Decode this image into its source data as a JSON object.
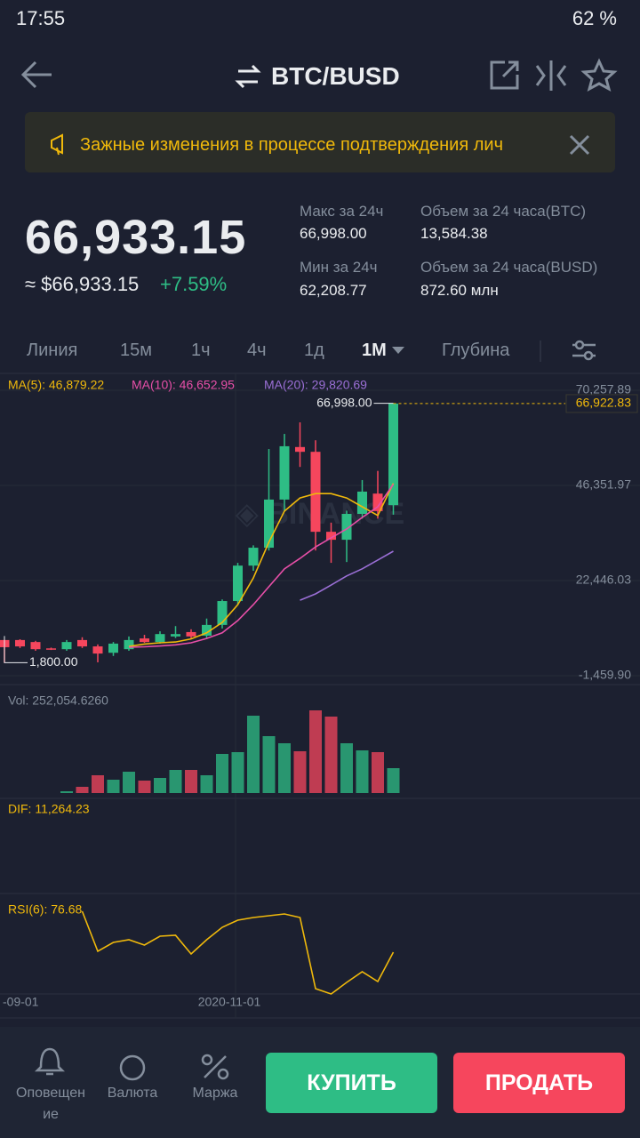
{
  "status_bar": {
    "time": "17:55",
    "battery": "62 %"
  },
  "header": {
    "title": "BTC/BUSD"
  },
  "banner": {
    "text": "Зажные изменения в процессе подтверждения лич"
  },
  "price": {
    "last": "66,933.15",
    "usd": "≈ $66,933.15",
    "change": "+7.59%"
  },
  "stats": [
    {
      "label": "Макс за 24ч",
      "value": "66,998.00"
    },
    {
      "label": "Объем за 24 часа(BTC)",
      "value": "13,584.38"
    },
    {
      "label": "Мин за 24ч",
      "value": "62,208.77"
    },
    {
      "label": "Объем за 24 часа(BUSD)",
      "value": "872.60 млн"
    }
  ],
  "tabs": [
    "Линия",
    "15м",
    "1ч",
    "4ч",
    "1д",
    "1М",
    "Глубина"
  ],
  "chart_data": {
    "type": "candlestick",
    "ylim": [
      -1459.9,
      70257.89
    ],
    "yticks": [
      {
        "value": 70257.89,
        "label": "70,257.89"
      },
      {
        "value": 46351.97,
        "label": "46,351.97"
      },
      {
        "value": 22446.03,
        "label": "22,446.03"
      },
      {
        "value": -1459.9,
        "label": "-1,459.90"
      }
    ],
    "up_color": "#2ebd85",
    "down_color": "#f6465d",
    "last_price": {
      "value": 66922.83,
      "label": "66,922.83"
    },
    "max_label": {
      "value": 66998,
      "label": "66,998.00"
    },
    "min_label": {
      "value": 1800,
      "label": "1,800.00"
    },
    "x_labels": [
      {
        "index": 0,
        "label": "-09-01"
      },
      {
        "index": 14,
        "label": "2020-11-01"
      }
    ],
    "candles": [
      {
        "open": 7500,
        "high": 7500,
        "low": 1800,
        "close": 5700
      },
      {
        "open": 7500,
        "high": 7700,
        "low": 5500,
        "close": 5900
      },
      {
        "open": 7000,
        "high": 7300,
        "low": 4800,
        "close": 5200
      },
      {
        "open": 5400,
        "high": 5600,
        "low": 5000,
        "close": 5200
      },
      {
        "open": 5200,
        "high": 7500,
        "low": 4800,
        "close": 7000
      },
      {
        "open": 7500,
        "high": 8200,
        "low": 5500,
        "close": 5900
      },
      {
        "open": 5900,
        "high": 6400,
        "low": 1900,
        "close": 4100
      },
      {
        "open": 4300,
        "high": 7000,
        "low": 3500,
        "close": 6600
      },
      {
        "open": 5200,
        "high": 8400,
        "low": 4800,
        "close": 7500
      },
      {
        "open": 7900,
        "high": 8800,
        "low": 6800,
        "close": 7000
      },
      {
        "open": 7000,
        "high": 9700,
        "low": 6600,
        "close": 9000
      },
      {
        "open": 8400,
        "high": 11000,
        "low": 8000,
        "close": 9000
      },
      {
        "open": 9500,
        "high": 10200,
        "low": 7900,
        "close": 8400
      },
      {
        "open": 8600,
        "high": 12900,
        "low": 8000,
        "close": 11300
      },
      {
        "open": 11300,
        "high": 17700,
        "low": 10400,
        "close": 17300
      },
      {
        "open": 17300,
        "high": 26900,
        "low": 16400,
        "close": 26200
      },
      {
        "open": 26200,
        "high": 31300,
        "low": 24900,
        "close": 30700
      },
      {
        "open": 30700,
        "high": 55500,
        "low": 30000,
        "close": 42800
      },
      {
        "open": 42800,
        "high": 59300,
        "low": 40000,
        "close": 56200
      },
      {
        "open": 56000,
        "high": 62200,
        "low": 51000,
        "close": 54800
      },
      {
        "open": 54800,
        "high": 57700,
        "low": 30000,
        "close": 34700
      },
      {
        "open": 34700,
        "high": 37000,
        "low": 26900,
        "close": 32700
      },
      {
        "open": 32700,
        "high": 40000,
        "low": 27100,
        "close": 39200
      },
      {
        "open": 39200,
        "high": 47700,
        "low": 38000,
        "close": 44800
      },
      {
        "open": 44300,
        "high": 50000,
        "low": 38000,
        "close": 39900
      },
      {
        "open": 41400,
        "high": 66998,
        "low": 39000,
        "close": 66922.83
      }
    ],
    "ma": [
      {
        "name": "MA(5): 46,879.22",
        "color": "#f0b90b",
        "values": [
          null,
          null,
          null,
          null,
          null,
          null,
          null,
          null,
          5900,
          6500,
          6800,
          7000,
          7800,
          9300,
          11900,
          16400,
          23100,
          32100,
          39900,
          43200,
          44300,
          44300,
          43200,
          41000,
          38800,
          46879.22
        ]
      },
      {
        "name": "MA(10): 46,652.95",
        "color": "#e84fa8",
        "values": [
          null,
          null,
          null,
          null,
          null,
          null,
          null,
          null,
          5700,
          5800,
          6000,
          6300,
          6800,
          7900,
          9300,
          12400,
          16400,
          20900,
          25400,
          28000,
          30900,
          33200,
          35400,
          38300,
          41000,
          46652.95
        ]
      },
      {
        "name": "MA(20): 29,820.69",
        "color": "#9b6fd6",
        "values": [
          null,
          null,
          null,
          null,
          null,
          null,
          null,
          null,
          null,
          null,
          null,
          null,
          null,
          null,
          null,
          null,
          null,
          null,
          null,
          17500,
          19100,
          21300,
          23600,
          25400,
          27600,
          29820.69
        ]
      }
    ],
    "volume": {
      "name": "Vol: 252,054.6260",
      "ylim": [
        0,
        1008000
      ],
      "values": [
        null,
        null,
        null,
        null,
        18000,
        63000,
        180000,
        135000,
        216000,
        126000,
        153000,
        234000,
        234000,
        180000,
        396000,
        414000,
        783000,
        576000,
        504000,
        423000,
        837000,
        774000,
        504000,
        432000,
        414000,
        252054.626
      ]
    },
    "dif": {
      "name": "DIF: 11,264.23"
    },
    "rsi": {
      "name": "RSI(6): 76.68",
      "color": "#f0b90b",
      "ylim": [
        60,
        99
      ],
      "values": [
        null,
        null,
        null,
        null,
        null,
        92.97,
        77.02,
        80.56,
        81.63,
        79.5,
        83.05,
        83.4,
        75.95,
        81.63,
        86.59,
        89.43,
        90.49,
        91.2,
        91.9,
        90.49,
        62.13,
        60,
        64.61,
        68.86,
        64.96,
        76.68
      ]
    }
  },
  "bottom_nav": {
    "items": [
      "Оповещение",
      "Валюта",
      "Маржа"
    ],
    "buy": "КУПИТЬ",
    "sell": "ПРОДАТЬ"
  }
}
